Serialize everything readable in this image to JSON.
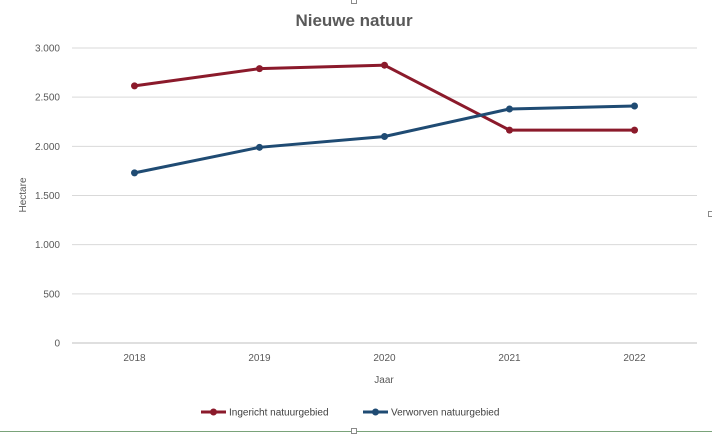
{
  "chart_data": {
    "type": "line",
    "title": "Nieuwe natuur",
    "xlabel": "Jaar",
    "ylabel": "Hectare",
    "categories": [
      "2018",
      "2019",
      "2020",
      "2021",
      "2022"
    ],
    "ylim": [
      0,
      3000
    ],
    "yticks": [
      0,
      500,
      1000,
      1500,
      2000,
      2500,
      3000
    ],
    "ytick_labels": [
      "0",
      "500",
      "1.000",
      "1.500",
      "2.000",
      "2.500",
      "3.000"
    ],
    "grid": true,
    "legend_position": "bottom",
    "series": [
      {
        "name": "Ingericht natuurgebied",
        "color": "#8b1a2b",
        "values": [
          2615,
          2790,
          2825,
          2165,
          2165
        ]
      },
      {
        "name": "Verworven natuurgebied",
        "color": "#1f4b73",
        "values": [
          1730,
          1990,
          2100,
          2380,
          2410
        ]
      }
    ]
  }
}
